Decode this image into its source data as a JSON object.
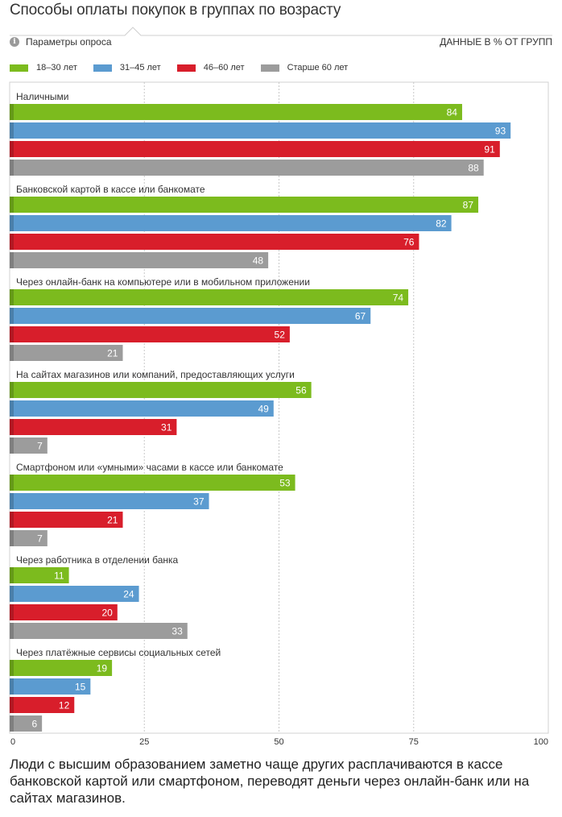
{
  "title": "Способы оплаты покупок в группах по возрасту",
  "params_label": "Параметры опроса",
  "info_icon_glyph": "i",
  "units_label": "ДАННЫЕ В % ОТ ГРУПП",
  "footer_text": "Люди с высшим образованием заметно чаще других расплачиваются в кассе банковской картой или смартфоном, переводят деньги через онлайн-банк или на сайтах магазинов.",
  "chart_data": {
    "type": "bar",
    "orientation": "horizontal",
    "title": "Способы оплаты покупок в группах по возрасту",
    "xlim": [
      0,
      100
    ],
    "xticks": [
      0,
      25,
      50,
      75,
      100
    ],
    "grid": true,
    "legend_position": "top",
    "categories": [
      "Наличными",
      "Банковской картой в кассе или банкомате",
      "Через онлайн-банк на компьютере или в мобильном приложении",
      "На сайтах магазинов или компаний, предоставляющих услуги",
      "Смартфоном или «умными» часами в кассе или банкомате",
      "Через работника в отделении банка",
      "Через платёжные сервисы социальных сетей"
    ],
    "series": [
      {
        "name": "18–30 лет",
        "color": "#7cbb1e",
        "values": [
          84,
          87,
          74,
          56,
          53,
          11,
          19
        ]
      },
      {
        "name": "31–45 лет",
        "color": "#5b9bd0",
        "values": [
          93,
          82,
          67,
          49,
          37,
          24,
          15
        ]
      },
      {
        "name": "46–60 лет",
        "color": "#d81e2b",
        "values": [
          91,
          76,
          52,
          31,
          21,
          20,
          12
        ]
      },
      {
        "name": "Старше 60 лет",
        "color": "#9c9c9c",
        "values": [
          88,
          48,
          21,
          7,
          7,
          33,
          6
        ]
      }
    ]
  }
}
